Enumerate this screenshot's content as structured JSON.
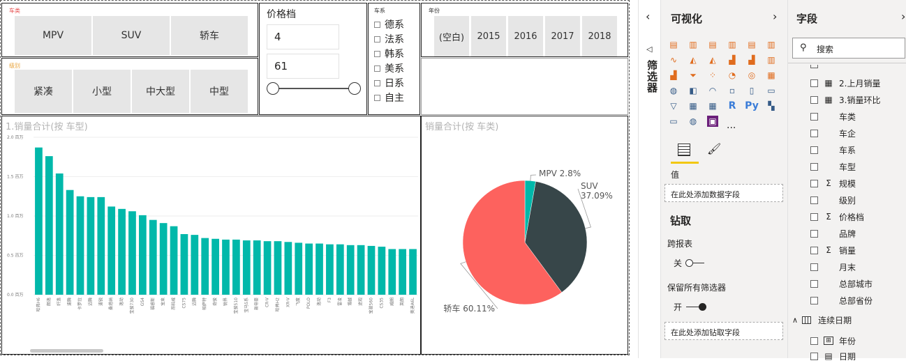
{
  "slicers": {
    "car_class": {
      "title": "车类",
      "items": [
        "MPV",
        "SUV",
        "轿车"
      ]
    },
    "level": {
      "title": "级别",
      "items": [
        "紧凑",
        "小型",
        "中大型",
        "中型"
      ]
    },
    "price": {
      "title": "价格档",
      "min": "4",
      "max": "61"
    },
    "series": {
      "title": "车系",
      "items": [
        "德系",
        "法系",
        "韩系",
        "美系",
        "日系",
        "自主"
      ]
    },
    "year": {
      "title": "年份",
      "items": [
        "(空白)",
        "2015",
        "2016",
        "2017",
        "2018"
      ]
    }
  },
  "bar_chart": {
    "title": "1.销量合计(按 车型)"
  },
  "pie_chart": {
    "title": "销量合计(按 车类)"
  },
  "chart_data": [
    {
      "type": "bar",
      "title": "1.销量合计(按 车型)",
      "ylim": [
        0,
        2.0
      ],
      "y_ticks": [
        "0.0 百万",
        "0.5 百万",
        "1.0 百万",
        "1.5 百万",
        "2.0 百万"
      ],
      "categories": [
        "哈弗H6",
        "朗逸",
        "轩逸",
        "速腾",
        "卡罗拉",
        "迈腾",
        "速锐",
        "桑塔纳",
        "逸动",
        "宝骏730",
        "GS4",
        "福睿斯",
        "宝来",
        "昂科威",
        "CS75",
        "迈腾",
        "帕萨特",
        "奇骏",
        "锐界",
        "宝骏510",
        "宝马5系",
        "新帝豪",
        "CR-V",
        "哈弗H2",
        "XR-V",
        "飞度",
        "POLO",
        "逸动",
        "F3",
        "雷凌",
        "博越",
        "途观",
        "宝骏560",
        "CS35",
        "威朗",
        "英朗",
        "奥迪A6L"
      ],
      "values": [
        1.87,
        1.76,
        1.54,
        1.33,
        1.25,
        1.24,
        1.24,
        1.12,
        1.09,
        1.06,
        1.01,
        0.95,
        0.91,
        0.87,
        0.77,
        0.76,
        0.72,
        0.71,
        0.7,
        0.7,
        0.69,
        0.69,
        0.68,
        0.68,
        0.67,
        0.66,
        0.65,
        0.65,
        0.64,
        0.64,
        0.63,
        0.63,
        0.62,
        0.61,
        0.58,
        0.58,
        0.58
      ]
    },
    {
      "type": "pie",
      "title": "销量合计(按 车类)",
      "categories": [
        "MPV",
        "SUV",
        "轿车"
      ],
      "values": [
        2.8,
        37.09,
        60.11
      ],
      "labels": [
        "MPV 2.8%",
        "SUV 37.09%",
        "轿车 60.11%"
      ],
      "colors": [
        "#01b8aa",
        "#374649",
        "#fd625e"
      ]
    }
  ],
  "filters_pane": {
    "label": "筛选器"
  },
  "viz_pane": {
    "title": "可视化",
    "values_label": "值",
    "values_drop": "在此处添加数据字段",
    "drill_title": "钻取",
    "cross_report": "跨报表",
    "cross_report_state": "关",
    "keep_filters": "保留所有筛选器",
    "keep_filters_state": "开",
    "drill_drop": "在此处添加钻取字段",
    "more": "..."
  },
  "fields_pane": {
    "title": "字段",
    "search_placeholder": "搜索",
    "fields": [
      {
        "name": "2.上月销量",
        "sym": "calc"
      },
      {
        "name": "3.销量环比",
        "sym": "calc"
      },
      {
        "name": "车类",
        "sym": ""
      },
      {
        "name": "车企",
        "sym": ""
      },
      {
        "name": "车系",
        "sym": ""
      },
      {
        "name": "车型",
        "sym": ""
      },
      {
        "name": "规模",
        "sym": "sigma"
      },
      {
        "name": "级别",
        "sym": ""
      },
      {
        "name": "价格档",
        "sym": "sigma"
      },
      {
        "name": "品牌",
        "sym": ""
      },
      {
        "name": "销量",
        "sym": "sigma"
      },
      {
        "name": "月末",
        "sym": ""
      },
      {
        "name": "总部城市",
        "sym": ""
      },
      {
        "name": "总部省份",
        "sym": ""
      }
    ],
    "table2": "连续日期",
    "table2_fields": [
      "年份",
      "日期"
    ]
  },
  "colors": {
    "accent": "#f2c811",
    "bar": "#01b8aa",
    "knob": "#252423"
  }
}
